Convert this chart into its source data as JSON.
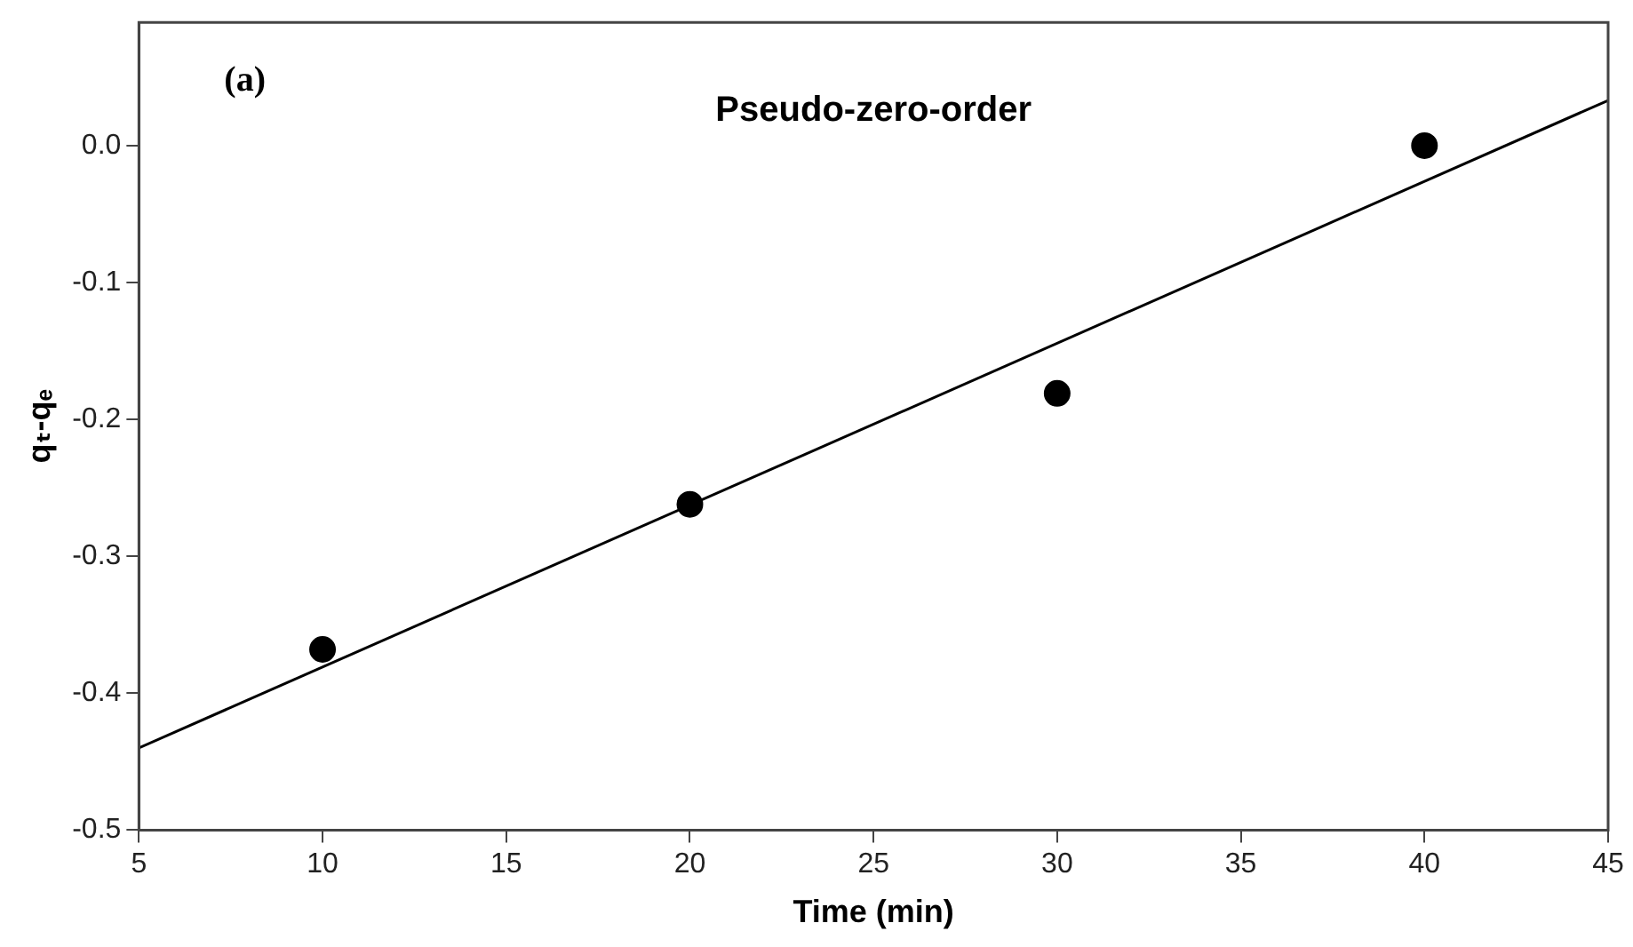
{
  "chart_data": {
    "type": "scatter",
    "xlabel": "Time (min)",
    "ylabel": "qₜ-qₑ",
    "annotations": [
      "(a)",
      "Pseudo-zero-order"
    ],
    "series": [
      {
        "color": "#000000",
        "x": [
          10,
          20,
          30,
          40
        ],
        "values": [
          -0.368,
          -0.262,
          -0.181,
          0.0
        ],
        "marker": "circle"
      },
      {
        "type": "line",
        "color": "#000000",
        "x": [
          5,
          45
        ],
        "values": [
          -0.44,
          0.033
        ],
        "marker": "none",
        "line_style": "solid"
      }
    ],
    "xlim": [
      5,
      45
    ],
    "xticks": [
      5,
      10,
      15,
      20,
      25,
      30,
      35,
      40,
      45
    ],
    "ylim": [
      -0.5,
      0.09
    ],
    "yticks": [
      {
        "value": -0.5,
        "label": "-0.5"
      },
      {
        "value": -0.4,
        "label": "-0.4"
      },
      {
        "value": -0.3,
        "label": "-0.3"
      },
      {
        "value": -0.2,
        "label": "-0.2"
      },
      {
        "value": -0.1,
        "label": "-0.1"
      },
      {
        "value": 0,
        "label": "0.0"
      }
    ],
    "grid": false,
    "legend": false
  }
}
